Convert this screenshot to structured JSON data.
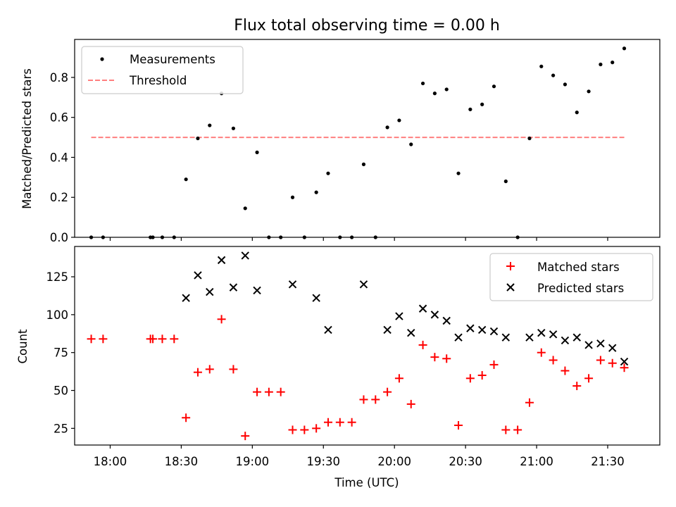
{
  "chart_data": [
    {
      "type": "scatter",
      "title": "Flux total observing time = 0.00 h",
      "xlabel": "",
      "ylabel": "Matched/Predicted stars",
      "yticks": [
        "0.0",
        "0.2",
        "0.4",
        "0.6",
        "0.8"
      ],
      "ylim": [
        0.0,
        0.99
      ],
      "xlim": [
        "17:45",
        "21:52"
      ],
      "legend": "top-left",
      "grid": false,
      "series": [
        {
          "name": "Measurements",
          "color": "#000000",
          "marker": "dot",
          "x": [
            "17:52",
            "17:57",
            "18:17",
            "18:18",
            "18:22",
            "18:27",
            "18:32",
            "18:37",
            "18:42",
            "18:47",
            "18:52",
            "18:57",
            "19:02",
            "19:07",
            "19:12",
            "19:17",
            "19:22",
            "19:27",
            "19:32",
            "19:37",
            "19:42",
            "19:47",
            "19:52",
            "19:57",
            "20:02",
            "20:07",
            "20:12",
            "20:17",
            "20:22",
            "20:27",
            "20:32",
            "20:37",
            "20:42",
            "20:47",
            "20:52",
            "20:57",
            "21:02",
            "21:07",
            "21:12",
            "21:17",
            "21:22",
            "21:27",
            "21:32",
            "21:37"
          ],
          "y": [
            0.0,
            0.0,
            0.0,
            0.0,
            0.0,
            0.0,
            0.29,
            0.495,
            0.56,
            0.72,
            0.545,
            0.145,
            0.425,
            0.0,
            0.0,
            0.2,
            0.0,
            0.225,
            0.32,
            0.0,
            0.0,
            0.365,
            0.0,
            0.55,
            0.585,
            0.465,
            0.77,
            0.72,
            0.74,
            0.32,
            0.64,
            0.665,
            0.755,
            0.28,
            0.0,
            0.495,
            0.855,
            0.81,
            0.765,
            0.625,
            0.73,
            0.865,
            0.875,
            0.945
          ]
        },
        {
          "name": "Threshold",
          "color": "#ff7f7f",
          "style": "dashed",
          "x": [
            "17:52",
            "21:37"
          ],
          "y": [
            0.5,
            0.5
          ]
        }
      ]
    },
    {
      "type": "scatter",
      "title": "",
      "xlabel": "Time (UTC)",
      "ylabel": "Count",
      "xticks": [
        "18:00",
        "18:30",
        "19:00",
        "19:30",
        "20:00",
        "20:30",
        "21:00",
        "21:30"
      ],
      "yticks": [
        "25",
        "50",
        "75",
        "100",
        "125"
      ],
      "ylim": [
        14,
        145
      ],
      "xlim": [
        "17:45",
        "21:52"
      ],
      "legend": "top-right",
      "grid": false,
      "series": [
        {
          "name": "Matched stars",
          "color": "#ff0000",
          "marker": "plus",
          "x": [
            "17:52",
            "17:57",
            "18:17",
            "18:18",
            "18:22",
            "18:27",
            "18:32",
            "18:37",
            "18:42",
            "18:47",
            "18:52",
            "18:57",
            "19:02",
            "19:07",
            "19:12",
            "19:17",
            "19:22",
            "19:27",
            "19:32",
            "19:37",
            "19:42",
            "19:47",
            "19:52",
            "19:57",
            "20:02",
            "20:07",
            "20:12",
            "20:17",
            "20:22",
            "20:27",
            "20:32",
            "20:37",
            "20:42",
            "20:47",
            "20:52",
            "20:57",
            "21:02",
            "21:07",
            "21:12",
            "21:17",
            "21:22",
            "21:27",
            "21:32",
            "21:37"
          ],
          "y": [
            84,
            84,
            84,
            84,
            84,
            84,
            32,
            62,
            64,
            97,
            64,
            20,
            49,
            49,
            49,
            24,
            24,
            25,
            29,
            29,
            29,
            44,
            44,
            49,
            58,
            41,
            80,
            72,
            71,
            27,
            58,
            60,
            67,
            24,
            24,
            42,
            75,
            70,
            63,
            53,
            58,
            70,
            68,
            65
          ]
        },
        {
          "name": "Predicted stars",
          "color": "#000000",
          "marker": "x",
          "x": [
            "18:32",
            "18:37",
            "18:42",
            "18:47",
            "18:52",
            "18:57",
            "19:02",
            "19:17",
            "19:27",
            "19:32",
            "19:47",
            "19:57",
            "20:02",
            "20:07",
            "20:12",
            "20:17",
            "20:22",
            "20:27",
            "20:32",
            "20:37",
            "20:42",
            "20:47",
            "20:57",
            "21:02",
            "21:07",
            "21:12",
            "21:17",
            "21:22",
            "21:27",
            "21:32",
            "21:37"
          ],
          "y": [
            111,
            126,
            115,
            136,
            118,
            139,
            116,
            120,
            111,
            90,
            120,
            90,
            99,
            88,
            104,
            100,
            96,
            85,
            91,
            90,
            89,
            85,
            85,
            88,
            87,
            83,
            85,
            80,
            81,
            78,
            69
          ]
        }
      ]
    }
  ]
}
